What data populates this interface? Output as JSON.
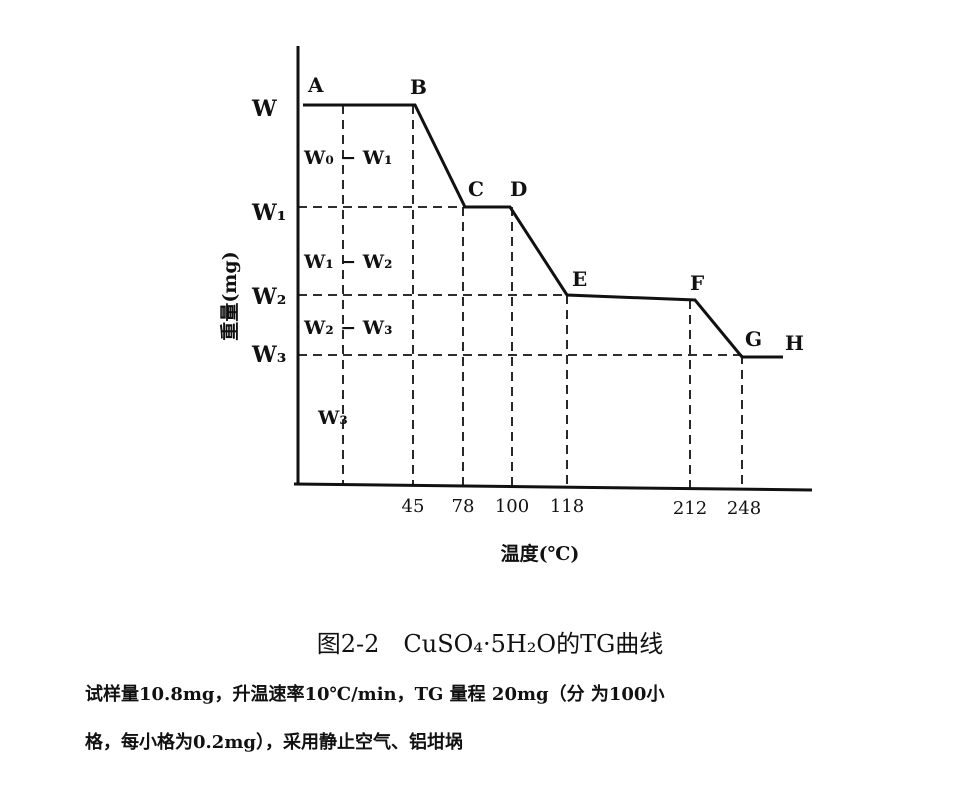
{
  "points": [
    "A",
    "B",
    "C",
    "D",
    "E",
    "F",
    "G",
    "H"
  ],
  "y_labels": [
    "W",
    "W₁",
    "W₂",
    "W₃"
  ],
  "intervals": [
    "W₀ − W₁",
    "W₁ − W₂",
    "W₂ − W₃",
    "W₃"
  ],
  "x_ticks": [
    45,
    78,
    100,
    118,
    212,
    248
  ],
  "y_axis_label": "重量(mg)",
  "x_axis_label": "温度(℃)",
  "caption": "图2-2　CuSO₄·5H₂O的TG曲线",
  "note": [
    "试样量10.8mg，升温速率10℃/min，TG 量程 20mg（分 为100小",
    "格，每小格为0.2mg），采用静止空气、铝坩埚"
  ]
}
